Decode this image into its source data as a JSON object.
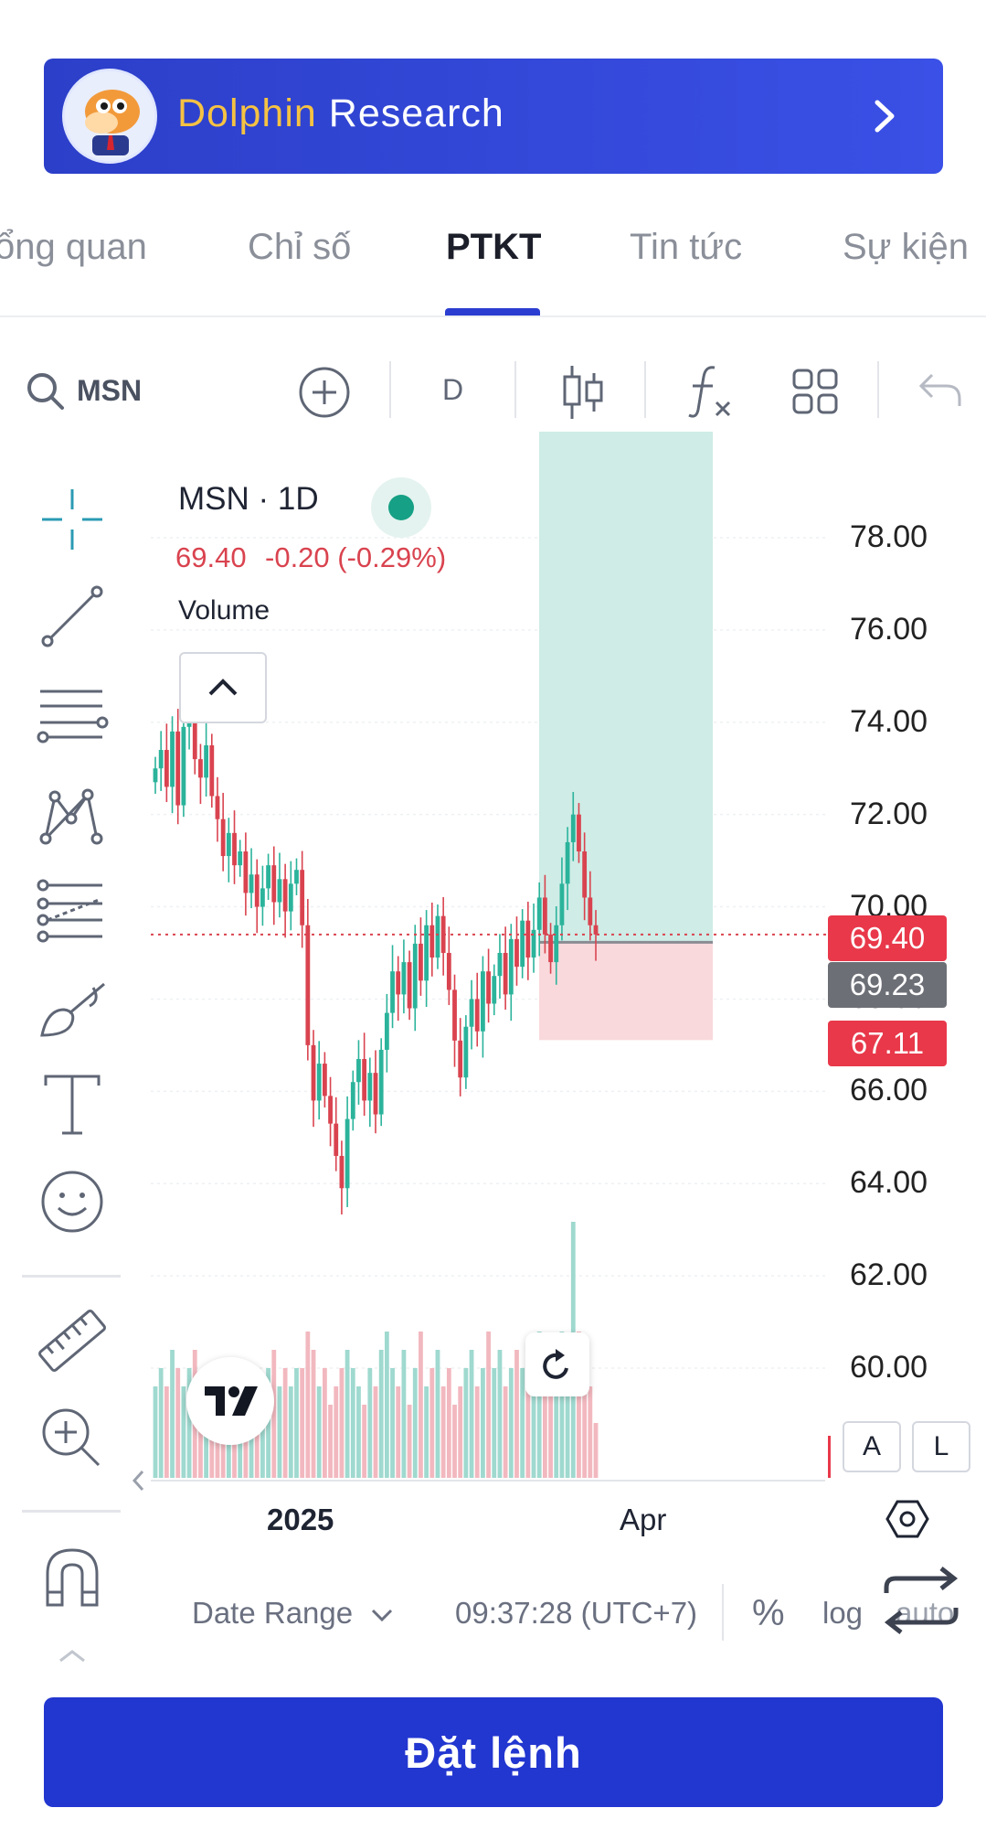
{
  "banner": {
    "brand_part1": "Dolphin",
    "brand_part2": "Research",
    "icon": "chevron-right-icon"
  },
  "tabs": [
    {
      "label": "ổng quan",
      "active": false
    },
    {
      "label": "Chỉ số",
      "active": false
    },
    {
      "label": "PTKT",
      "active": true
    },
    {
      "label": "Tin tức",
      "active": false
    },
    {
      "label": "Sự kiện",
      "active": false
    }
  ],
  "toolbar": {
    "symbol": "MSN",
    "interval": "D"
  },
  "legend": {
    "title": "MSN · 1D",
    "price": "69.40",
    "change": "-0.20 (-0.29%)",
    "volume_label": "Volume"
  },
  "price_tags": {
    "last": "69.40",
    "entry": "69.23",
    "stop": "67.11"
  },
  "axis": {
    "x_labels": [
      "2025",
      "Apr"
    ],
    "scale_buttons": [
      "A",
      "L"
    ]
  },
  "bottom": {
    "date_range": "Date Range",
    "time": "09:37:28 (UTC+7)",
    "percent": "%",
    "log": "log",
    "auto": "auto"
  },
  "order_button": "Đặt lệnh",
  "colors": {
    "up": "#2bb39b",
    "down": "#d9434f",
    "brand": "#2236d0",
    "brand_accent": "#f5c243"
  },
  "chart_data": {
    "type": "candlestick",
    "symbol": "MSN",
    "interval": "1D",
    "y_ticks": [
      78.0,
      76.0,
      74.0,
      72.0,
      70.0,
      68.0,
      66.0,
      64.0,
      62.0,
      60.0
    ],
    "ylim": [
      58.5,
      80.5
    ],
    "last_price": 69.4,
    "position": {
      "entry": 69.23,
      "target": 80.3,
      "stop": 67.11
    },
    "close": [
      73.0,
      73.4,
      72.6,
      73.8,
      72.2,
      73.9,
      74.3,
      73.2,
      72.8,
      73.5,
      72.4,
      71.9,
      71.1,
      71.6,
      70.9,
      71.2,
      70.3,
      70.7,
      70.0,
      70.4,
      70.9,
      70.1,
      70.6,
      69.9,
      70.5,
      70.8,
      69.6,
      67.0,
      65.8,
      66.6,
      65.9,
      65.3,
      64.6,
      63.9,
      65.4,
      66.2,
      66.7,
      65.8,
      66.4,
      65.5,
      66.9,
      67.7,
      68.6,
      68.1,
      68.8,
      67.8,
      69.2,
      68.4,
      69.6,
      68.9,
      69.8,
      69.0,
      68.2,
      67.1,
      66.3,
      67.4,
      68.0,
      67.3,
      68.6,
      67.9,
      68.5,
      69.0,
      68.1,
      69.3,
      68.7,
      69.7,
      68.9,
      69.5,
      70.2,
      69.4,
      68.8,
      69.6,
      70.5,
      71.4,
      72.0,
      71.2,
      70.2,
      69.6,
      69.4
    ],
    "volume": [
      5,
      6,
      5,
      7,
      6,
      5,
      6,
      7,
      5,
      6,
      5,
      4,
      6,
      5,
      4,
      5,
      6,
      5,
      4,
      5,
      6,
      7,
      5,
      6,
      5,
      6,
      6,
      8,
      7,
      5,
      6,
      4,
      5,
      6,
      7,
      6,
      5,
      4,
      6,
      5,
      7,
      8,
      6,
      5,
      7,
      4,
      6,
      8,
      5,
      6,
      7,
      5,
      6,
      4,
      5,
      6,
      7,
      5,
      6,
      8,
      6,
      7,
      5,
      6,
      7,
      6,
      5,
      7,
      8,
      6,
      7,
      6,
      8,
      7,
      14,
      8,
      6,
      5,
      3
    ]
  }
}
